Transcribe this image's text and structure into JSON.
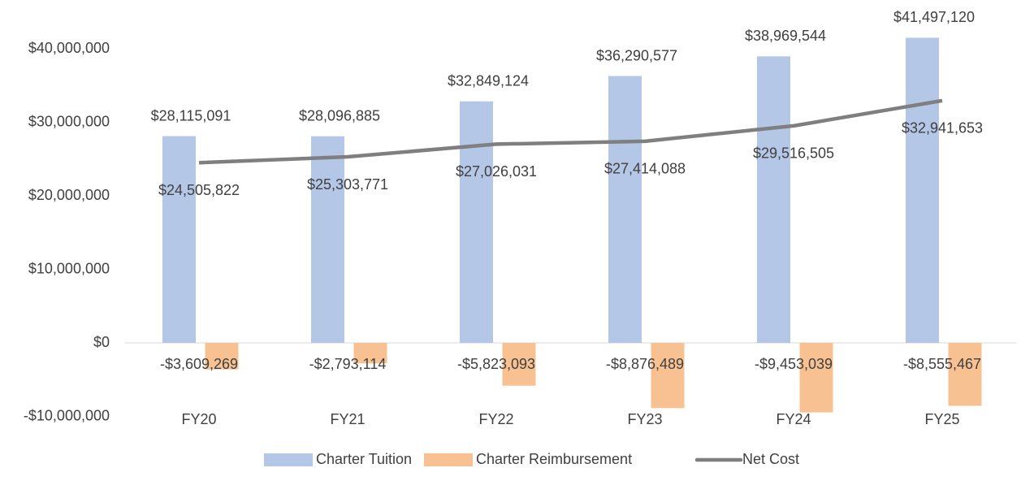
{
  "chart_data": {
    "type": "bar",
    "categories": [
      "FY20",
      "FY21",
      "FY22",
      "FY23",
      "FY24",
      "FY25"
    ],
    "series": [
      {
        "name": "Charter Tuition",
        "type": "bar",
        "color": "#b4c7e7",
        "values": [
          28115091,
          28096885,
          32849124,
          36290577,
          38969544,
          41497120
        ],
        "value_labels": [
          "$28,115,091",
          "$28,096,885",
          "$32,849,124",
          "$36,290,577",
          "$38,969,544",
          "$41,497,120"
        ]
      },
      {
        "name": "Charter Reimbursement",
        "type": "bar",
        "color": "#f8c191",
        "values": [
          -3609269,
          -2793114,
          -5823093,
          -8876489,
          -9453039,
          -8555467
        ],
        "value_labels": [
          "-$3,609,269",
          "-$2,793,114",
          "-$5,823,093",
          "-$8,876,489",
          "-$9,453,039",
          "-$8,555,467"
        ]
      },
      {
        "name": "Net Cost",
        "type": "line",
        "color": "#7f7f7f",
        "values": [
          24505822,
          25303771,
          27026031,
          27414088,
          29516505,
          32941653
        ],
        "value_labels": [
          "$24,505,822",
          "$25,303,771",
          "$27,026,031",
          "$27,414,088",
          "$29,516,505",
          "$32,941,653"
        ]
      }
    ],
    "ylim": [
      -10000000,
      45000000
    ],
    "yticks": [
      {
        "value": -10000000,
        "label": "-$10,000,000"
      },
      {
        "value": 0,
        "label": "$0"
      },
      {
        "value": 10000000,
        "label": "$10,000,000"
      },
      {
        "value": 20000000,
        "label": "$20,000,000"
      },
      {
        "value": 30000000,
        "label": "$30,000,000"
      },
      {
        "value": 40000000,
        "label": "$40,000,000"
      }
    ],
    "grid": false,
    "legend": "bottom"
  }
}
